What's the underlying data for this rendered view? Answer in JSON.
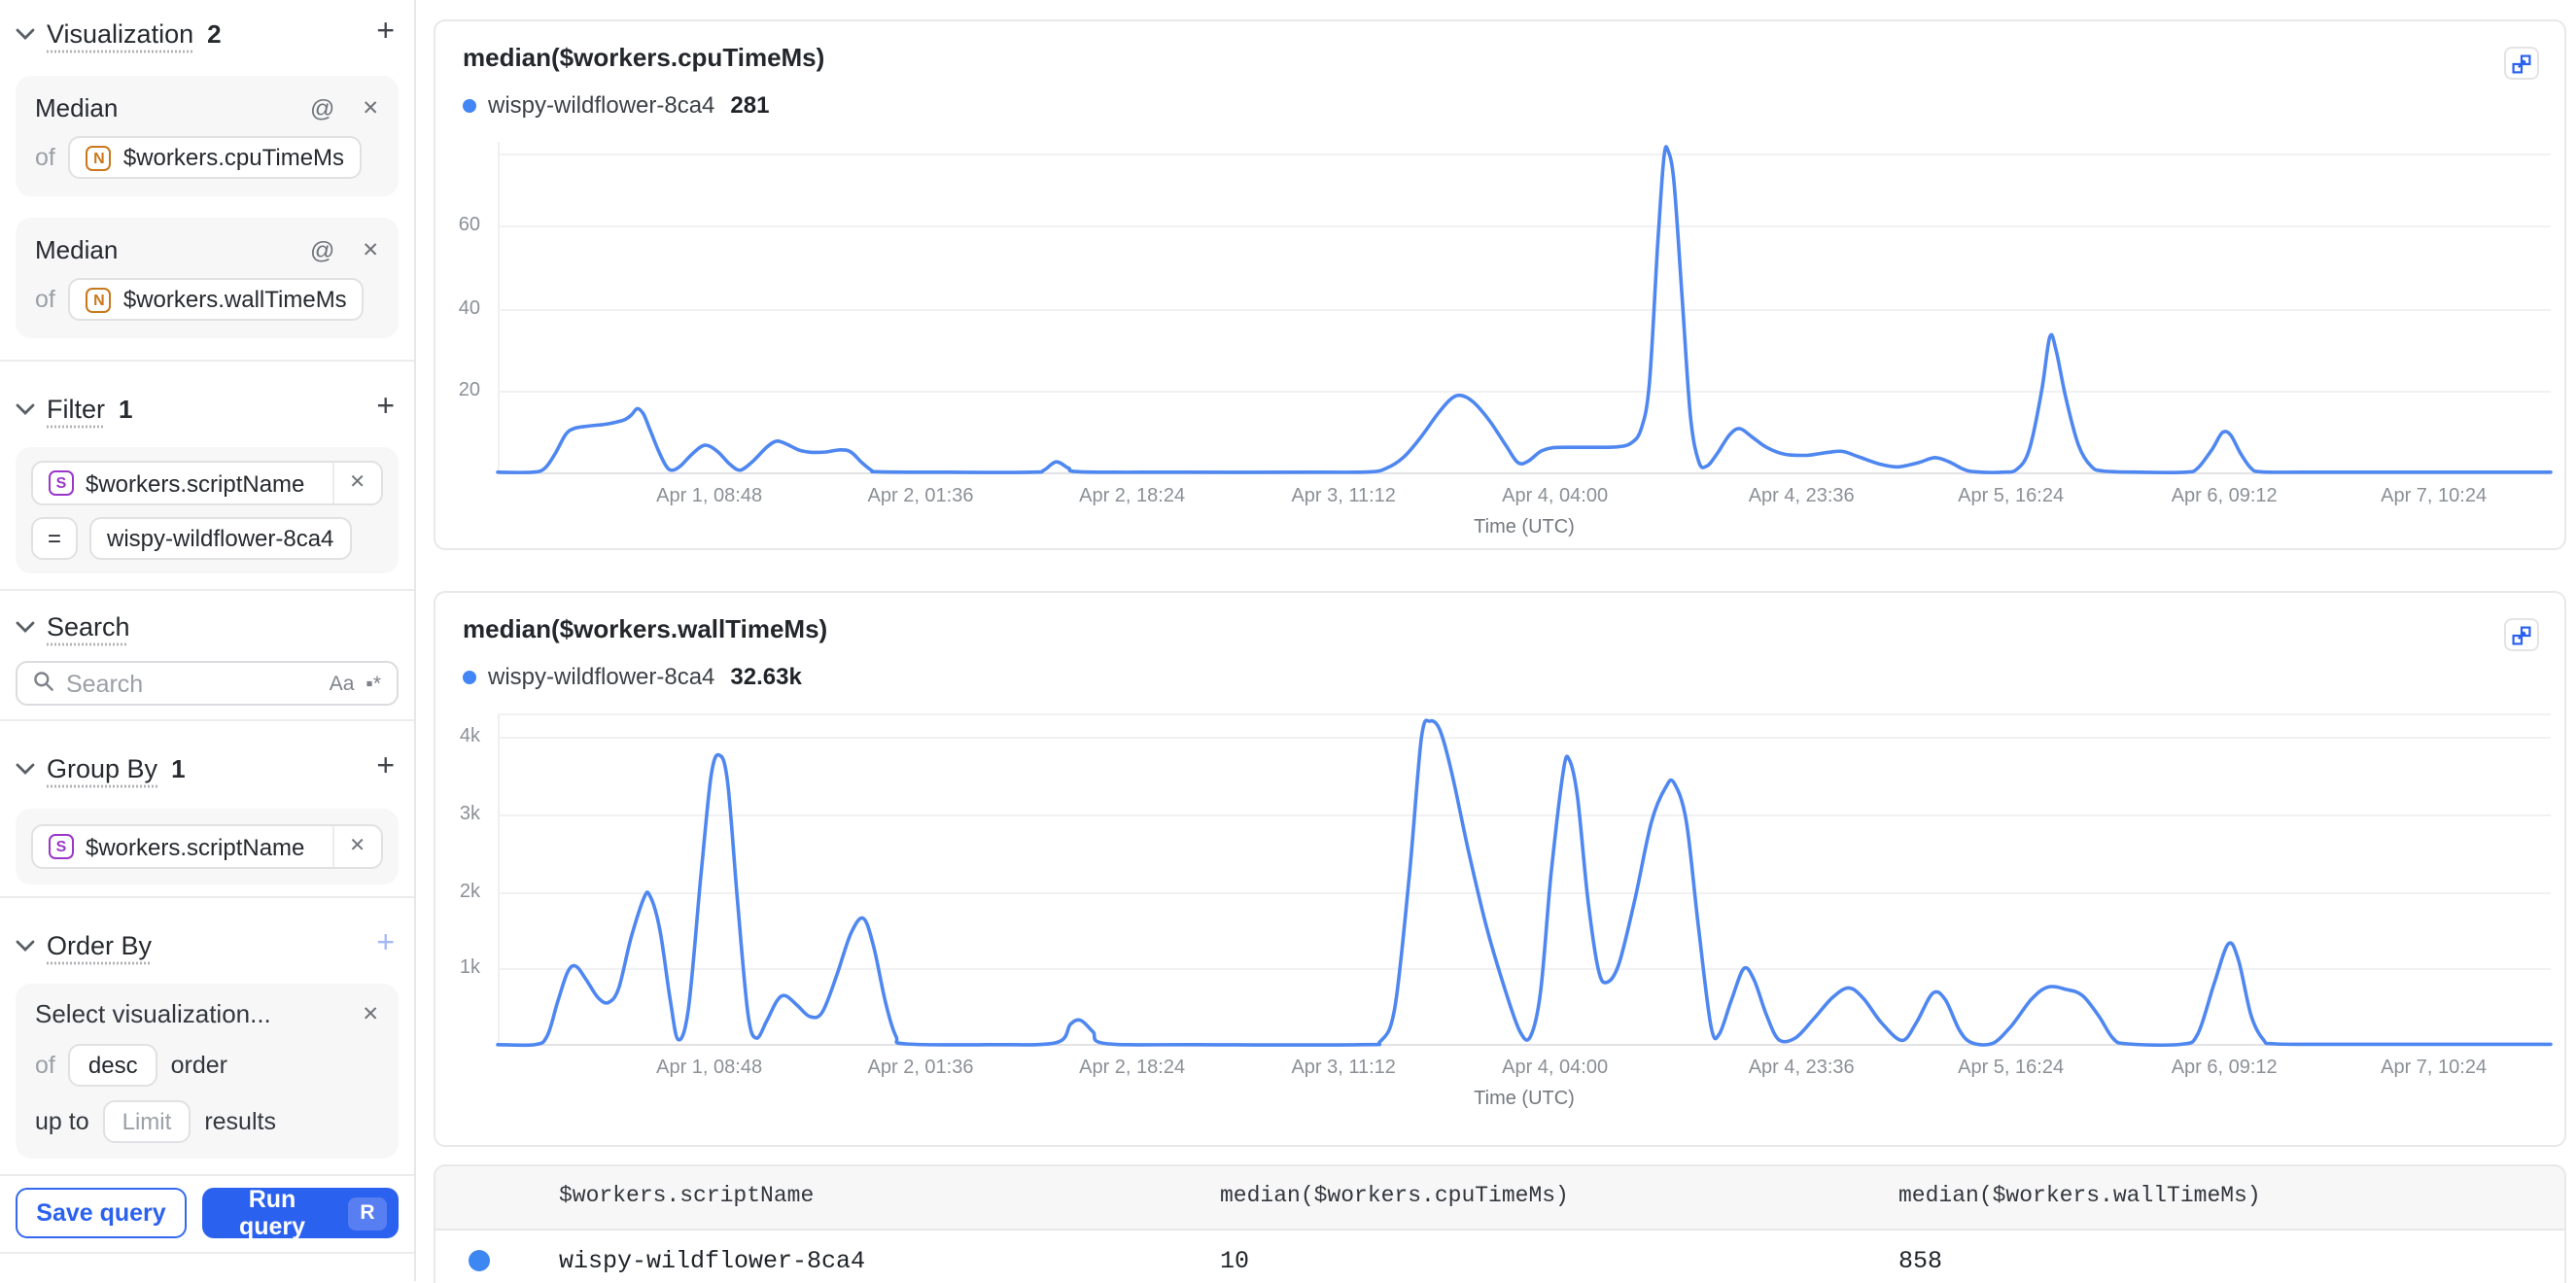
{
  "colors": {
    "accent_blue": "#2b61ef",
    "chart_line": "#4f87f0",
    "series_dot": "#4285f4",
    "number_badge": "#c9781c",
    "string_badge": "#9a36c9"
  },
  "sidebar": {
    "visualization": {
      "label": "Visualization",
      "count": "2",
      "add": "+"
    },
    "metrics": [
      {
        "name": "Median",
        "alias_icon": "@",
        "remove_icon": "✕",
        "of": "of",
        "field_type": "N",
        "field": "$workers.cpuTimeMs"
      },
      {
        "name": "Median",
        "alias_icon": "@",
        "remove_icon": "✕",
        "of": "of",
        "field_type": "N",
        "field": "$workers.wallTimeMs"
      }
    ],
    "filter": {
      "label": "Filter",
      "count": "1",
      "add": "+",
      "field_type": "S",
      "field": "$workers.scriptName",
      "remove_icon": "✕",
      "operator": "=",
      "value": "wispy-wildflower-8ca4"
    },
    "search": {
      "label": "Search",
      "placeholder": "Search",
      "match_case_icon": "Aa",
      "regex_icon": "▪*"
    },
    "group_by": {
      "label": "Group By",
      "count": "1",
      "add": "+",
      "field_type": "S",
      "field": "$workers.scriptName",
      "remove_icon": "✕"
    },
    "order_by": {
      "label": "Order By",
      "add": "+",
      "placeholder": "Select visualization...",
      "remove_icon": "✕",
      "of": "of",
      "direction": "desc",
      "order": "order",
      "up_to": "up to",
      "limit_placeholder": "Limit",
      "results": "results"
    },
    "actions": {
      "save": "Save query",
      "run": "Run query",
      "shortcut": "R"
    }
  },
  "chart_data": [
    {
      "type": "line",
      "title": "median($workers.cpuTimeMs)",
      "legend": {
        "series": "wispy-wildflower-8ca4",
        "value": "281"
      },
      "xlabel": "Time (UTC)",
      "ylim": [
        0,
        80
      ],
      "y_ticks": [
        {
          "v": 20,
          "label": "20"
        },
        {
          "v": 40,
          "label": "40"
        },
        {
          "v": 60,
          "label": "60"
        },
        {
          "v": 77,
          "label": ""
        }
      ],
      "x_ticks": [
        {
          "t": 0.103,
          "label": "Apr 1, 08:48"
        },
        {
          "t": 0.206,
          "label": "Apr 2, 01:36"
        },
        {
          "t": 0.309,
          "label": "Apr 2, 18:24"
        },
        {
          "t": 0.412,
          "label": "Apr 3, 11:12"
        },
        {
          "t": 0.515,
          "label": "Apr 4, 04:00"
        },
        {
          "t": 0.635,
          "label": "Apr 4, 23:36"
        },
        {
          "t": 0.737,
          "label": "Apr 5, 16:24"
        },
        {
          "t": 0.841,
          "label": "Apr 6, 09:12"
        },
        {
          "t": 0.943,
          "label": "Apr 7, 10:24"
        }
      ],
      "points": [
        [
          0,
          0.5
        ],
        [
          0.017,
          0.5
        ],
        [
          0.023,
          1.5
        ],
        [
          0.028,
          5
        ],
        [
          0.033,
          9.5
        ],
        [
          0.037,
          11
        ],
        [
          0.044,
          11.6
        ],
        [
          0.052,
          12
        ],
        [
          0.058,
          12.6
        ],
        [
          0.062,
          13.2
        ],
        [
          0.065,
          14.2
        ],
        [
          0.068,
          15.8
        ],
        [
          0.071,
          14.5
        ],
        [
          0.074,
          11
        ],
        [
          0.078,
          6
        ],
        [
          0.082,
          2
        ],
        [
          0.085,
          1
        ],
        [
          0.089,
          2
        ],
        [
          0.095,
          5
        ],
        [
          0.101,
          7
        ],
        [
          0.107,
          5.5
        ],
        [
          0.113,
          2.5
        ],
        [
          0.118,
          1
        ],
        [
          0.124,
          3
        ],
        [
          0.131,
          6.5
        ],
        [
          0.136,
          8
        ],
        [
          0.141,
          7.2
        ],
        [
          0.147,
          5.8
        ],
        [
          0.153,
          5.3
        ],
        [
          0.16,
          5.4
        ],
        [
          0.167,
          5.9
        ],
        [
          0.172,
          5.4
        ],
        [
          0.177,
          3
        ],
        [
          0.182,
          1
        ],
        [
          0.186,
          0.6
        ],
        [
          0.22,
          0.5
        ],
        [
          0.26,
          0.5
        ],
        [
          0.266,
          1
        ],
        [
          0.272,
          3
        ],
        [
          0.278,
          1.5
        ],
        [
          0.284,
          0.6
        ],
        [
          0.33,
          0.5
        ],
        [
          0.4,
          0.5
        ],
        [
          0.425,
          0.6
        ],
        [
          0.433,
          1.5
        ],
        [
          0.441,
          4
        ],
        [
          0.449,
          8.5
        ],
        [
          0.457,
          14
        ],
        [
          0.464,
          18
        ],
        [
          0.469,
          19
        ],
        [
          0.475,
          17.5
        ],
        [
          0.483,
          13
        ],
        [
          0.491,
          7
        ],
        [
          0.497,
          2.8
        ],
        [
          0.502,
          3.2
        ],
        [
          0.508,
          5.5
        ],
        [
          0.514,
          6.4
        ],
        [
          0.524,
          6.5
        ],
        [
          0.535,
          6.5
        ],
        [
          0.545,
          6.6
        ],
        [
          0.552,
          7.5
        ],
        [
          0.557,
          11
        ],
        [
          0.561,
          22
        ],
        [
          0.565,
          55
        ],
        [
          0.568,
          76
        ],
        [
          0.57,
          78
        ],
        [
          0.573,
          70
        ],
        [
          0.577,
          42
        ],
        [
          0.581,
          14
        ],
        [
          0.585,
          3
        ],
        [
          0.589,
          2
        ],
        [
          0.594,
          5
        ],
        [
          0.6,
          9.5
        ],
        [
          0.605,
          11
        ],
        [
          0.611,
          9
        ],
        [
          0.618,
          6.5
        ],
        [
          0.627,
          4.8
        ],
        [
          0.638,
          4.6
        ],
        [
          0.648,
          5.3
        ],
        [
          0.655,
          5.5
        ],
        [
          0.663,
          4.2
        ],
        [
          0.673,
          2.5
        ],
        [
          0.682,
          1.8
        ],
        [
          0.692,
          2.8
        ],
        [
          0.7,
          4
        ],
        [
          0.707,
          3
        ],
        [
          0.714,
          1.2
        ],
        [
          0.72,
          0.6
        ],
        [
          0.733,
          0.5
        ],
        [
          0.74,
          1.2
        ],
        [
          0.746,
          6
        ],
        [
          0.752,
          20
        ],
        [
          0.756,
          33
        ],
        [
          0.759,
          30
        ],
        [
          0.764,
          18
        ],
        [
          0.77,
          7
        ],
        [
          0.776,
          2
        ],
        [
          0.782,
          0.8
        ],
        [
          0.8,
          0.5
        ],
        [
          0.822,
          0.5
        ],
        [
          0.828,
          1.5
        ],
        [
          0.835,
          6
        ],
        [
          0.84,
          10
        ],
        [
          0.844,
          9.5
        ],
        [
          0.849,
          5
        ],
        [
          0.854,
          1.5
        ],
        [
          0.859,
          0.6
        ],
        [
          0.88,
          0.5
        ],
        [
          0.94,
          0.5
        ],
        [
          1,
          0.5
        ]
      ]
    },
    {
      "type": "line",
      "title": "median($workers.wallTimeMs)",
      "legend": {
        "series": "wispy-wildflower-8ca4",
        "value": "32.63k"
      },
      "xlabel": "Time (UTC)",
      "ylim": [
        0,
        4300
      ],
      "y_ticks": [
        {
          "v": 1000,
          "label": "1k"
        },
        {
          "v": 2000,
          "label": "2k"
        },
        {
          "v": 3000,
          "label": "3k"
        },
        {
          "v": 4000,
          "label": "4k"
        },
        {
          "v": 4290,
          "label": ""
        }
      ],
      "x_ticks": [
        {
          "t": 0.103,
          "label": "Apr 1, 08:48"
        },
        {
          "t": 0.206,
          "label": "Apr 2, 01:36"
        },
        {
          "t": 0.309,
          "label": "Apr 2, 18:24"
        },
        {
          "t": 0.412,
          "label": "Apr 3, 11:12"
        },
        {
          "t": 0.515,
          "label": "Apr 4, 04:00"
        },
        {
          "t": 0.635,
          "label": "Apr 4, 23:36"
        },
        {
          "t": 0.737,
          "label": "Apr 5, 16:24"
        },
        {
          "t": 0.841,
          "label": "Apr 6, 09:12"
        },
        {
          "t": 0.943,
          "label": "Apr 7, 10:24"
        }
      ],
      "points": [
        [
          0,
          15
        ],
        [
          0.018,
          15
        ],
        [
          0.024,
          120
        ],
        [
          0.029,
          550
        ],
        [
          0.034,
          950
        ],
        [
          0.038,
          1030
        ],
        [
          0.043,
          860
        ],
        [
          0.049,
          620
        ],
        [
          0.054,
          560
        ],
        [
          0.059,
          750
        ],
        [
          0.065,
          1400
        ],
        [
          0.071,
          1900
        ],
        [
          0.074,
          1950
        ],
        [
          0.079,
          1500
        ],
        [
          0.084,
          600
        ],
        [
          0.088,
          80
        ],
        [
          0.093,
          500
        ],
        [
          0.099,
          2200
        ],
        [
          0.104,
          3500
        ],
        [
          0.108,
          3760
        ],
        [
          0.112,
          3400
        ],
        [
          0.117,
          1800
        ],
        [
          0.122,
          400
        ],
        [
          0.126,
          100
        ],
        [
          0.131,
          320
        ],
        [
          0.136,
          580
        ],
        [
          0.14,
          650
        ],
        [
          0.146,
          520
        ],
        [
          0.152,
          380
        ],
        [
          0.158,
          430
        ],
        [
          0.165,
          900
        ],
        [
          0.172,
          1450
        ],
        [
          0.178,
          1650
        ],
        [
          0.183,
          1300
        ],
        [
          0.189,
          550
        ],
        [
          0.194,
          120
        ],
        [
          0.199,
          25
        ],
        [
          0.24,
          15
        ],
        [
          0.272,
          40
        ],
        [
          0.279,
          280
        ],
        [
          0.284,
          330
        ],
        [
          0.29,
          180
        ],
        [
          0.296,
          30
        ],
        [
          0.34,
          15
        ],
        [
          0.42,
          15
        ],
        [
          0.43,
          60
        ],
        [
          0.437,
          500
        ],
        [
          0.444,
          2200
        ],
        [
          0.45,
          4000
        ],
        [
          0.454,
          4200
        ],
        [
          0.459,
          4080
        ],
        [
          0.465,
          3500
        ],
        [
          0.473,
          2500
        ],
        [
          0.482,
          1500
        ],
        [
          0.491,
          700
        ],
        [
          0.498,
          180
        ],
        [
          0.503,
          120
        ],
        [
          0.508,
          700
        ],
        [
          0.513,
          2200
        ],
        [
          0.519,
          3550
        ],
        [
          0.522,
          3700
        ],
        [
          0.526,
          3200
        ],
        [
          0.531,
          1900
        ],
        [
          0.536,
          1000
        ],
        [
          0.54,
          820
        ],
        [
          0.546,
          1050
        ],
        [
          0.554,
          1900
        ],
        [
          0.562,
          2900
        ],
        [
          0.569,
          3350
        ],
        [
          0.573,
          3400
        ],
        [
          0.579,
          2900
        ],
        [
          0.585,
          1500
        ],
        [
          0.591,
          250
        ],
        [
          0.595,
          150
        ],
        [
          0.601,
          600
        ],
        [
          0.607,
          1000
        ],
        [
          0.612,
          850
        ],
        [
          0.618,
          400
        ],
        [
          0.624,
          80
        ],
        [
          0.632,
          100
        ],
        [
          0.641,
          350
        ],
        [
          0.65,
          620
        ],
        [
          0.658,
          750
        ],
        [
          0.665,
          620
        ],
        [
          0.674,
          300
        ],
        [
          0.684,
          70
        ],
        [
          0.691,
          300
        ],
        [
          0.699,
          680
        ],
        [
          0.705,
          600
        ],
        [
          0.712,
          200
        ],
        [
          0.718,
          40
        ],
        [
          0.728,
          30
        ],
        [
          0.737,
          250
        ],
        [
          0.747,
          600
        ],
        [
          0.755,
          760
        ],
        [
          0.764,
          730
        ],
        [
          0.772,
          650
        ],
        [
          0.78,
          380
        ],
        [
          0.787,
          90
        ],
        [
          0.794,
          25
        ],
        [
          0.82,
          20
        ],
        [
          0.828,
          150
        ],
        [
          0.836,
          800
        ],
        [
          0.843,
          1320
        ],
        [
          0.848,
          1100
        ],
        [
          0.854,
          400
        ],
        [
          0.86,
          80
        ],
        [
          0.866,
          25
        ],
        [
          0.9,
          20
        ],
        [
          0.95,
          20
        ],
        [
          1,
          20
        ]
      ]
    }
  ],
  "table": {
    "headers": [
      "$workers.scriptName",
      "median($workers.cpuTimeMs)",
      "median($workers.wallTimeMs)"
    ],
    "rows": [
      {
        "series": "wispy-wildflower-8ca4",
        "cpu": "10",
        "wall": "858"
      }
    ]
  }
}
